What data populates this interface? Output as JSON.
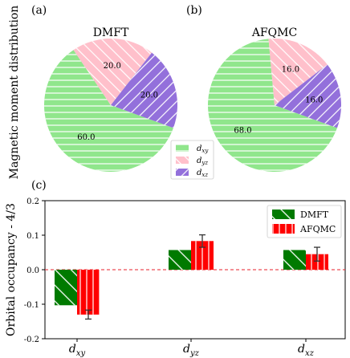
{
  "figure": {
    "panel_labels": [
      "(a)",
      "(b)",
      "(c)"
    ],
    "left_axis_label": "Magnetic moment distribution"
  },
  "colors": {
    "green": "#90e68c",
    "pink": "#ffc0cb",
    "purple": "#9370db",
    "dark_green": "#007a00",
    "red": "#ff0000",
    "hatch": "#ffffff",
    "grid_zero": "#e8222b"
  },
  "chart_data": [
    {
      "type": "pie",
      "title": "DMFT",
      "slices": [
        {
          "label": "d_xy",
          "value": 60.0,
          "display": "60.0"
        },
        {
          "label": "d_yz",
          "value": 20.0,
          "display": "20.0"
        },
        {
          "label": "d_xz",
          "value": 20.0,
          "display": "20.0"
        }
      ]
    },
    {
      "type": "pie",
      "title": "AFQMC",
      "slices": [
        {
          "label": "d_xy",
          "value": 68.0,
          "display": "68.0"
        },
        {
          "label": "d_yz",
          "value": 16.0,
          "display": "16.0"
        },
        {
          "label": "d_xz",
          "value": 16.0,
          "display": "16.0"
        }
      ]
    },
    {
      "type": "bar",
      "categories": [
        "d_xy",
        "d_yz",
        "d_xz"
      ],
      "ylabel": "Orbital occupancy - 4/3",
      "ylim": [
        -0.2,
        0.2
      ],
      "yticks": [
        "-0.2",
        "-0.1",
        "0.0",
        "0.1",
        "0.2"
      ],
      "reference_line": 0.0,
      "legend_position": "top-right",
      "series": [
        {
          "name": "DMFT",
          "values": [
            -0.103,
            0.057,
            0.057
          ],
          "errors": [
            0,
            0,
            0
          ]
        },
        {
          "name": "AFQMC",
          "values": [
            -0.13,
            0.083,
            0.045
          ],
          "errors": [
            0.013,
            0.018,
            0.02
          ]
        }
      ]
    }
  ],
  "pie_legend": {
    "entries": [
      "d_xy",
      "d_yz",
      "d_xz"
    ]
  }
}
